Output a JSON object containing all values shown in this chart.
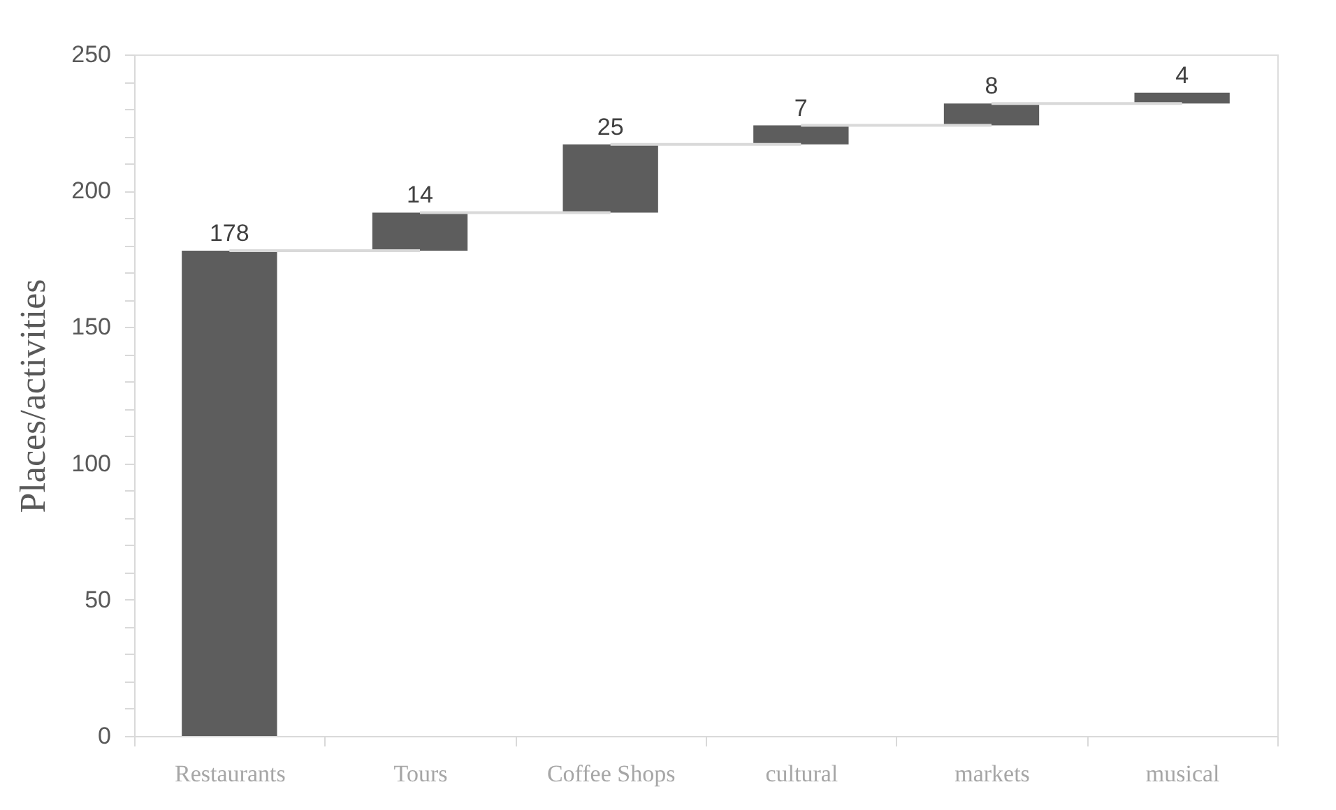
{
  "chart_data": {
    "type": "bar",
    "ylabel": "Places/activities",
    "categories": [
      "Restaurants",
      "Tours",
      "Coffee Shops",
      "cultural",
      "markets",
      "musical"
    ],
    "values": [
      178,
      14,
      25,
      7,
      8,
      4
    ],
    "base": [
      0,
      178,
      192,
      217,
      224,
      232
    ],
    "color": "#5d5d5d",
    "ylim": [
      0,
      250
    ],
    "yticks": [
      0,
      {
        "value": 10,
        "label": null
      },
      {
        "value": 20,
        "label": null
      },
      {
        "value": 30,
        "label": null
      },
      {
        "value": 40,
        "label": null
      },
      50,
      {
        "value": 60,
        "label": null
      },
      {
        "value": 70,
        "label": null
      },
      {
        "value": 80,
        "label": null
      },
      {
        "value": 90,
        "label": null
      },
      100,
      {
        "value": 110,
        "label": null
      },
      {
        "value": 120,
        "label": null
      },
      {
        "value": 130,
        "label": null
      },
      {
        "value": 140,
        "label": null
      },
      150,
      {
        "value": 160,
        "label": null
      },
      {
        "value": 170,
        "label": null
      },
      {
        "value": 180,
        "label": null
      },
      {
        "value": 190,
        "label": null
      },
      200,
      {
        "value": 210,
        "label": null
      },
      {
        "value": 220,
        "label": null
      },
      {
        "value": 230,
        "label": null
      },
      {
        "value": 240,
        "label": null
      },
      250
    ],
    "grid": false,
    "data_labels": true
  }
}
